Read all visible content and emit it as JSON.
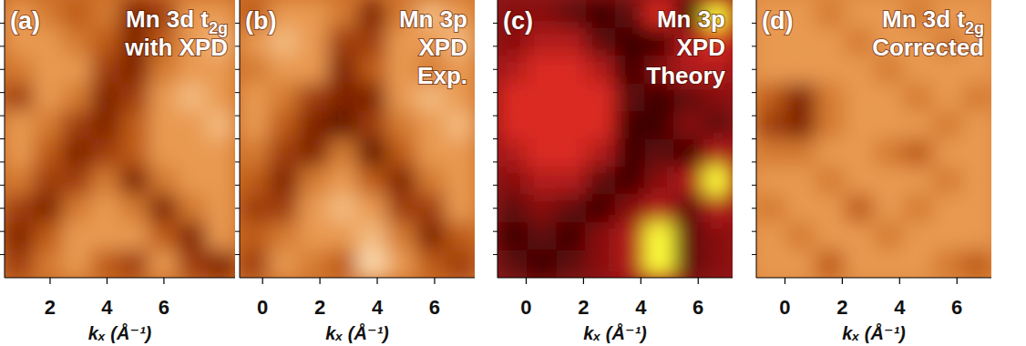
{
  "chart_data": [
    {
      "type": "heatmap",
      "panel_label": "(a)",
      "title": [
        "Mn 3d t2g",
        "with XPD"
      ],
      "color": "orange",
      "x_label": "kₓ (Å⁻¹)",
      "xlim": [
        0.4,
        8.5
      ],
      "xticks": [
        2,
        4,
        6
      ],
      "ylim": [
        0,
        12
      ],
      "yticks": [
        1,
        2,
        3,
        4,
        5,
        6,
        7,
        8,
        9,
        10,
        11
      ],
      "tick_labels": "x",
      "zlim": [
        0,
        9
      ],
      "cells": [
        [
          6,
          5,
          4,
          5,
          2,
          3,
          6,
          6
        ],
        [
          6,
          6,
          5,
          4,
          2,
          4,
          6,
          7
        ],
        [
          5,
          6,
          6,
          3,
          2,
          5,
          6,
          6
        ],
        [
          3,
          6,
          5,
          2,
          3,
          6,
          7,
          6
        ],
        [
          6,
          5,
          3,
          2,
          4,
          6,
          6,
          7
        ],
        [
          6,
          4,
          2,
          3,
          4,
          6,
          6,
          6
        ],
        [
          5,
          3,
          3,
          5,
          2,
          5,
          6,
          6
        ],
        [
          3,
          2,
          5,
          6,
          5,
          2,
          5,
          6
        ],
        [
          2,
          4,
          6,
          6,
          6,
          4,
          2,
          6
        ],
        [
          3,
          5,
          6,
          4,
          3,
          6,
          3,
          2
        ]
      ]
    },
    {
      "type": "heatmap",
      "panel_label": "(b)",
      "title": [
        "Mn 3p",
        "XPD",
        "Exp."
      ],
      "color": "orange",
      "x_label": "kₓ (Å⁻¹)",
      "xlim": [
        -0.8,
        7.4
      ],
      "xticks": [
        0,
        2,
        4,
        6
      ],
      "ylim": [
        0,
        12
      ],
      "yticks": [
        1,
        2,
        3,
        4,
        5,
        6,
        7,
        8,
        9,
        10,
        11
      ],
      "tick_labels": "x",
      "zlim": [
        0,
        9
      ],
      "cells": [
        [
          4,
          6,
          6,
          5,
          2,
          5,
          7,
          6
        ],
        [
          6,
          7,
          6,
          3,
          3,
          6,
          6,
          7
        ],
        [
          5,
          6,
          6,
          2,
          4,
          6,
          5,
          6
        ],
        [
          6,
          5,
          3,
          2,
          2,
          6,
          7,
          6
        ],
        [
          6,
          4,
          2,
          1,
          3,
          5,
          6,
          7
        ],
        [
          5,
          3,
          2,
          5,
          1,
          4,
          6,
          6
        ],
        [
          4,
          2,
          5,
          6,
          4,
          2,
          5,
          6
        ],
        [
          3,
          3,
          6,
          7,
          6,
          3,
          3,
          6
        ],
        [
          4,
          5,
          6,
          6,
          7,
          5,
          2,
          4
        ],
        [
          3,
          6,
          5,
          4,
          8,
          6,
          4,
          3
        ]
      ]
    },
    {
      "type": "heatmap",
      "panel_label": "(c)",
      "title": [
        "Mn 3p",
        "XPD",
        "Theory"
      ],
      "color": "hot",
      "x_label": "kₓ (Å⁻¹)",
      "xlim": [
        -1.0,
        7.2
      ],
      "xticks": [
        0,
        2,
        4,
        6
      ],
      "ylim": [
        0,
        12
      ],
      "yticks": [
        1,
        2,
        3,
        4,
        5,
        6,
        7,
        8,
        9,
        10,
        11
      ],
      "tick_labels": "x",
      "zlim": [
        0,
        9
      ],
      "cells": [
        [
          4,
          4,
          3,
          2,
          3,
          6,
          2,
          9
        ],
        [
          4,
          5,
          5,
          3,
          2,
          2,
          5,
          6
        ],
        [
          5,
          6,
          6,
          5,
          2,
          4,
          5,
          5
        ],
        [
          6,
          6,
          6,
          6,
          3,
          2,
          3,
          4
        ],
        [
          6,
          6,
          6,
          6,
          2,
          2,
          4,
          3
        ],
        [
          5,
          6,
          6,
          5,
          2,
          3,
          2,
          5
        ],
        [
          4,
          5,
          5,
          3,
          2,
          4,
          5,
          9
        ],
        [
          3,
          4,
          3,
          2,
          4,
          5,
          3,
          5
        ],
        [
          2,
          3,
          2,
          4,
          5,
          9,
          3,
          4
        ],
        [
          3,
          2,
          3,
          4,
          5,
          9,
          3,
          4
        ]
      ]
    },
    {
      "type": "heatmap",
      "panel_label": "(d)",
      "title": [
        "Mn 3d t2g",
        "Corrected"
      ],
      "color": "orange",
      "x_label": "kₓ (Å⁻¹)",
      "xlim": [
        -1.0,
        7.2
      ],
      "xticks": [
        0,
        2,
        4,
        6
      ],
      "ylim": [
        0,
        12
      ],
      "yticks": [
        1,
        2,
        3,
        4,
        5,
        6,
        7,
        8,
        9,
        10,
        11
      ],
      "tick_labels": "x",
      "zlim": [
        0,
        9
      ],
      "cells": [
        [
          6,
          6,
          5,
          6,
          6,
          5,
          6,
          6
        ],
        [
          6,
          6,
          6,
          5,
          6,
          6,
          5,
          6
        ],
        [
          6,
          6,
          6,
          6,
          5,
          6,
          6,
          6
        ],
        [
          4,
          2,
          5,
          6,
          6,
          5,
          6,
          5
        ],
        [
          3,
          2,
          5,
          6,
          6,
          6,
          5,
          6
        ],
        [
          5,
          5,
          6,
          6,
          5,
          4,
          6,
          6
        ],
        [
          6,
          6,
          5,
          6,
          6,
          6,
          5,
          6
        ],
        [
          5,
          6,
          6,
          4,
          6,
          5,
          6,
          6
        ],
        [
          6,
          5,
          6,
          6,
          5,
          6,
          6,
          6
        ],
        [
          6,
          6,
          4,
          6,
          6,
          6,
          5,
          4
        ]
      ]
    }
  ]
}
